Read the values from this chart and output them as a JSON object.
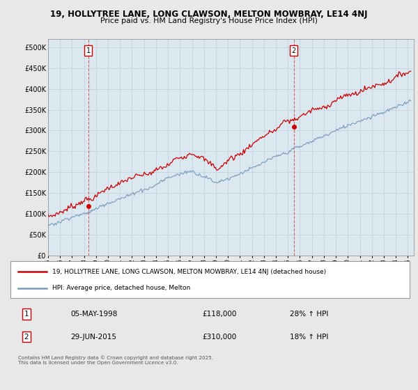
{
  "title1": "19, HOLLYTREE LANE, LONG CLAWSON, MELTON MOWBRAY, LE14 4NJ",
  "title2": "Price paid vs. HM Land Registry's House Price Index (HPI)",
  "ylabel_ticks": [
    "£0",
    "£50K",
    "£100K",
    "£150K",
    "£200K",
    "£250K",
    "£300K",
    "£350K",
    "£400K",
    "£450K",
    "£500K"
  ],
  "ytick_vals": [
    0,
    50000,
    100000,
    150000,
    200000,
    250000,
    300000,
    350000,
    400000,
    450000,
    500000
  ],
  "ylim": [
    0,
    520000
  ],
  "xlim_start": 1995.0,
  "xlim_end": 2025.5,
  "red_line_color": "#cc0000",
  "blue_line_color": "#7799bb",
  "vline_color": "#cc4444",
  "marker1_x": 1998.35,
  "marker1_y": 118000,
  "marker2_x": 2015.5,
  "marker2_y": 310000,
  "legend_red": "19, HOLLYTREE LANE, LONG CLAWSON, MELTON MOWBRAY, LE14 4NJ (detached house)",
  "legend_blue": "HPI: Average price, detached house, Melton",
  "table_row1": [
    "1",
    "05-MAY-1998",
    "£118,000",
    "28% ↑ HPI"
  ],
  "table_row2": [
    "2",
    "29-JUN-2015",
    "£310,000",
    "18% ↑ HPI"
  ],
  "footer": "Contains HM Land Registry data © Crown copyright and database right 2025.\nThis data is licensed under the Open Government Licence v3.0.",
  "background_color": "#e8e8e8",
  "plot_background": "#dce8f0",
  "grid_color": "#c0ccd8"
}
